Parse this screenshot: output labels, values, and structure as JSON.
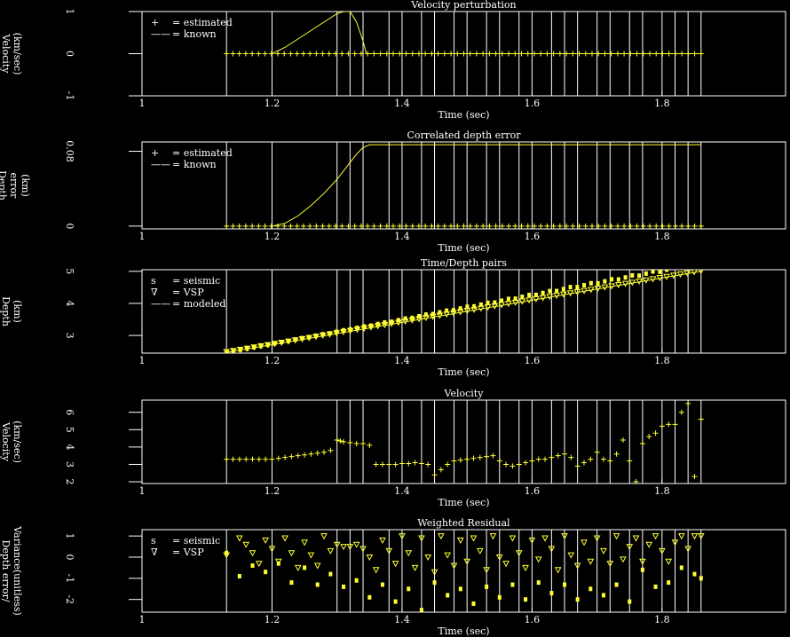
{
  "figure": {
    "x_axis_title": "Time (sec)",
    "x_ticks": [
      1,
      1.2,
      1.4,
      1.6,
      1.8
    ],
    "x_range": [
      1.0,
      1.99
    ],
    "vertical_line_times": [
      1.13,
      1.2,
      1.3,
      1.32,
      1.34,
      1.38,
      1.4,
      1.43,
      1.45,
      1.48,
      1.5,
      1.53,
      1.55,
      1.58,
      1.6,
      1.63,
      1.65,
      1.67,
      1.7,
      1.72,
      1.75,
      1.77,
      1.8,
      1.82,
      1.84,
      1.86
    ]
  },
  "chart_data": [
    {
      "type": "line",
      "title": "Velocity perturbation",
      "ylabel": [
        "Velocity",
        "(km/sec)"
      ],
      "yticks": [
        1,
        0,
        -1
      ],
      "ylim": [
        -1,
        1
      ],
      "legend": [
        {
          "symbol": "+",
          "label": "= estimated"
        },
        {
          "symbol": "——",
          "label": "= known"
        }
      ],
      "series": [
        {
          "name": "known",
          "style": "line",
          "x": [
            1.2,
            1.22,
            1.24,
            1.26,
            1.28,
            1.3,
            1.31,
            1.32,
            1.33,
            1.34,
            1.345,
            1.86
          ],
          "y": [
            0,
            0.15,
            0.35,
            0.55,
            0.75,
            0.95,
            1,
            1,
            0.75,
            0.3,
            0,
            0
          ]
        },
        {
          "name": "estimated",
          "style": "plus",
          "x_range": [
            1.13,
            1.86
          ],
          "count": 75,
          "y": 0
        }
      ]
    },
    {
      "type": "line",
      "title": "Correlated depth error",
      "ylabel": [
        "Depth",
        "error",
        "(km)"
      ],
      "yticks": [
        0.08,
        0
      ],
      "ylim": [
        -0.003,
        0.09
      ],
      "legend": [
        {
          "symbol": "+",
          "label": "= estimated"
        },
        {
          "symbol": "——",
          "label": "= known"
        }
      ],
      "series": [
        {
          "name": "known",
          "style": "line",
          "x": [
            1.2,
            1.22,
            1.24,
            1.26,
            1.28,
            1.3,
            1.31,
            1.32,
            1.33,
            1.34,
            1.35,
            1.86
          ],
          "y": [
            0,
            0.003,
            0.011,
            0.022,
            0.035,
            0.05,
            0.059,
            0.068,
            0.077,
            0.084,
            0.087,
            0.087
          ]
        },
        {
          "name": "estimated",
          "style": "plus",
          "x_range": [
            1.13,
            1.86
          ],
          "count": 75,
          "y": 0
        }
      ]
    },
    {
      "type": "line",
      "title": "Time/Depth pairs",
      "ylabel": [
        "Depth",
        "(km)"
      ],
      "yticks": [
        5,
        4,
        3
      ],
      "ylim": [
        2.45,
        5.05
      ],
      "legend": [
        {
          "symbol": "s",
          "label": "= seismic"
        },
        {
          "symbol": "∇",
          "label": "= VSP"
        },
        {
          "symbol": "——",
          "label": "= modeled"
        }
      ],
      "series": [
        {
          "name": "modeled",
          "style": "line",
          "x": [
            1.13,
            1.86
          ],
          "y": [
            2.47,
            5.0
          ]
        },
        {
          "name": "VSP",
          "style": "vsp_marker",
          "x_range": [
            1.13,
            1.86
          ],
          "count": 70,
          "y_line": [
            2.47,
            5.0
          ],
          "y_offset": 0.02
        },
        {
          "name": "seismic",
          "style": "seismic_marker",
          "x_range": [
            1.13,
            1.86
          ],
          "count": 70,
          "y_line": [
            2.47,
            5.0
          ],
          "y_offset_max": 0.28
        }
      ]
    },
    {
      "type": "scatter",
      "title": "Velocity",
      "ylabel": [
        "Velocity",
        "(km/sec)"
      ],
      "yticks": [
        6,
        5,
        4,
        3,
        2
      ],
      "ylim": [
        1.9,
        6.7
      ],
      "series": [
        {
          "name": "velocity",
          "style": "plus",
          "x": [
            1.13,
            1.14,
            1.15,
            1.16,
            1.17,
            1.18,
            1.19,
            1.2,
            1.21,
            1.22,
            1.23,
            1.24,
            1.25,
            1.26,
            1.27,
            1.28,
            1.29,
            1.3,
            1.305,
            1.31,
            1.32,
            1.33,
            1.34,
            1.35,
            1.36,
            1.37,
            1.38,
            1.39,
            1.4,
            1.41,
            1.42,
            1.43,
            1.44,
            1.45,
            1.46,
            1.47,
            1.48,
            1.49,
            1.5,
            1.51,
            1.52,
            1.53,
            1.54,
            1.55,
            1.56,
            1.57,
            1.58,
            1.59,
            1.6,
            1.61,
            1.62,
            1.63,
            1.64,
            1.65,
            1.66,
            1.67,
            1.68,
            1.69,
            1.7,
            1.71,
            1.72,
            1.73,
            1.74,
            1.75,
            1.76,
            1.77,
            1.78,
            1.79,
            1.8,
            1.81,
            1.82,
            1.83,
            1.84,
            1.85,
            1.86
          ],
          "y": [
            3.3,
            3.3,
            3.3,
            3.3,
            3.3,
            3.3,
            3.3,
            3.3,
            3.35,
            3.4,
            3.45,
            3.5,
            3.55,
            3.6,
            3.65,
            3.7,
            3.8,
            4.4,
            4.35,
            4.3,
            4.25,
            4.2,
            4.2,
            4.1,
            3.0,
            3.0,
            3.0,
            3.0,
            3.05,
            3.05,
            3.1,
            3.05,
            3.0,
            2.4,
            2.7,
            3.0,
            3.2,
            3.25,
            3.3,
            3.35,
            3.4,
            3.45,
            3.5,
            3.2,
            3.0,
            2.9,
            3.0,
            3.1,
            3.2,
            3.3,
            3.3,
            3.4,
            3.5,
            3.6,
            3.4,
            2.9,
            3.1,
            3.3,
            3.7,
            3.3,
            3.2,
            3.6,
            4.4,
            3.2,
            2.0,
            4.2,
            4.6,
            4.8,
            5.2,
            5.3,
            5.3,
            6.0,
            6.5,
            2.3,
            5.6
          ]
        }
      ]
    },
    {
      "type": "scatter",
      "title": "Weighted Residual",
      "ylabel": [
        "Depth error/",
        "Variance(unitless)"
      ],
      "yticks": [
        1,
        0,
        -1,
        -2
      ],
      "ylim": [
        -2.6,
        1.3
      ],
      "legend": [
        {
          "symbol": "s",
          "label": "= seismic"
        },
        {
          "symbol": "∇",
          "label": "= VSP"
        }
      ],
      "series": [
        {
          "name": "VSP",
          "style": "vsp_marker",
          "x": [
            1.13,
            1.15,
            1.16,
            1.17,
            1.18,
            1.19,
            1.2,
            1.21,
            1.22,
            1.23,
            1.24,
            1.25,
            1.26,
            1.27,
            1.28,
            1.29,
            1.3,
            1.31,
            1.32,
            1.33,
            1.34,
            1.35,
            1.36,
            1.37,
            1.38,
            1.39,
            1.4,
            1.41,
            1.42,
            1.43,
            1.44,
            1.45,
            1.46,
            1.47,
            1.48,
            1.49,
            1.5,
            1.51,
            1.52,
            1.53,
            1.54,
            1.55,
            1.56,
            1.57,
            1.58,
            1.59,
            1.6,
            1.61,
            1.62,
            1.63,
            1.64,
            1.65,
            1.66,
            1.67,
            1.68,
            1.69,
            1.7,
            1.71,
            1.72,
            1.73,
            1.74,
            1.75,
            1.76,
            1.77,
            1.78,
            1.79,
            1.8,
            1.81,
            1.82,
            1.83,
            1.84,
            1.85,
            1.86
          ],
          "y": [
            0.1,
            0.9,
            0.6,
            0.2,
            -0.3,
            0.8,
            0.4,
            -0.2,
            0.9,
            0.2,
            -0.5,
            0.7,
            0.1,
            -0.4,
            1.0,
            0.3,
            0.6,
            0.5,
            0.5,
            0.6,
            0.4,
            0.0,
            -0.6,
            0.8,
            0.3,
            -0.3,
            1.0,
            0.2,
            -0.5,
            0.9,
            0.0,
            -0.7,
            1.0,
            0.1,
            -0.4,
            0.8,
            -0.2,
            0.9,
            0.3,
            -0.6,
            1.0,
            0.0,
            -0.3,
            0.9,
            0.2,
            -0.5,
            0.8,
            -0.1,
            0.9,
            0.4,
            -0.6,
            1.0,
            0.1,
            -0.4,
            0.7,
            -0.2,
            0.9,
            0.3,
            -0.3,
            1.0,
            -0.1,
            0.5,
            0.9,
            -0.2,
            0.6,
            1.0,
            0.3,
            -0.2,
            0.7,
            1.0,
            0.4,
            1.0,
            1.0
          ]
        },
        {
          "name": "seismic",
          "style": "seismic_marker",
          "x": [
            1.13,
            1.15,
            1.17,
            1.19,
            1.21,
            1.23,
            1.25,
            1.27,
            1.29,
            1.31,
            1.33,
            1.35,
            1.37,
            1.39,
            1.41,
            1.43,
            1.45,
            1.47,
            1.49,
            1.51,
            1.53,
            1.55,
            1.57,
            1.59,
            1.61,
            1.63,
            1.65,
            1.67,
            1.69,
            1.71,
            1.73,
            1.75,
            1.77,
            1.79,
            1.81,
            1.83,
            1.85,
            1.86
          ],
          "y": [
            0.2,
            -0.9,
            -0.4,
            -0.7,
            -0.3,
            -1.2,
            -0.5,
            -1.3,
            -0.8,
            -1.4,
            -1.1,
            -1.9,
            -1.3,
            -2.1,
            -1.5,
            -2.5,
            -1.2,
            -1.8,
            -1.5,
            -2.2,
            -1.4,
            -1.9,
            -1.3,
            -2.0,
            -1.2,
            -1.7,
            -1.3,
            -2.0,
            -1.5,
            -1.8,
            -1.3,
            -2.1,
            -0.6,
            -1.4,
            -1.2,
            -0.5,
            -0.8,
            -1.0
          ]
        }
      ]
    }
  ]
}
